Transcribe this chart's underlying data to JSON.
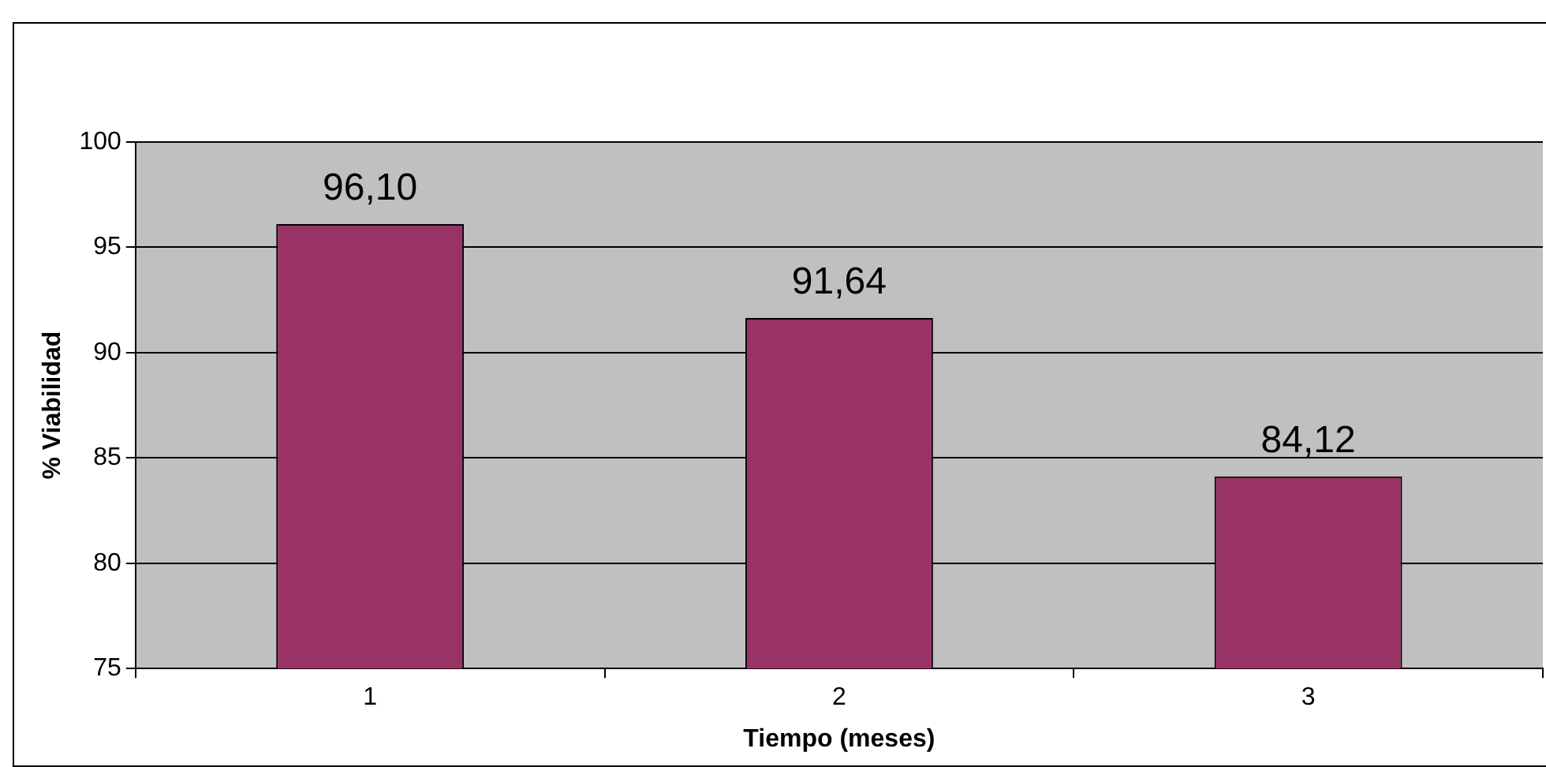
{
  "chart_data": {
    "type": "bar",
    "xlabel": "Tiempo (meses)",
    "ylabel": "% Viabilidad",
    "categories": [
      "1",
      "2",
      "3"
    ],
    "values": [
      96.1,
      91.64,
      84.12
    ],
    "value_labels": [
      "96,10",
      "91,64",
      "84,12"
    ],
    "color": "#993366",
    "ylim": [
      75,
      100
    ],
    "yticks": [
      75,
      80,
      85,
      90,
      95,
      100
    ],
    "grid": "y",
    "legend": false
  }
}
